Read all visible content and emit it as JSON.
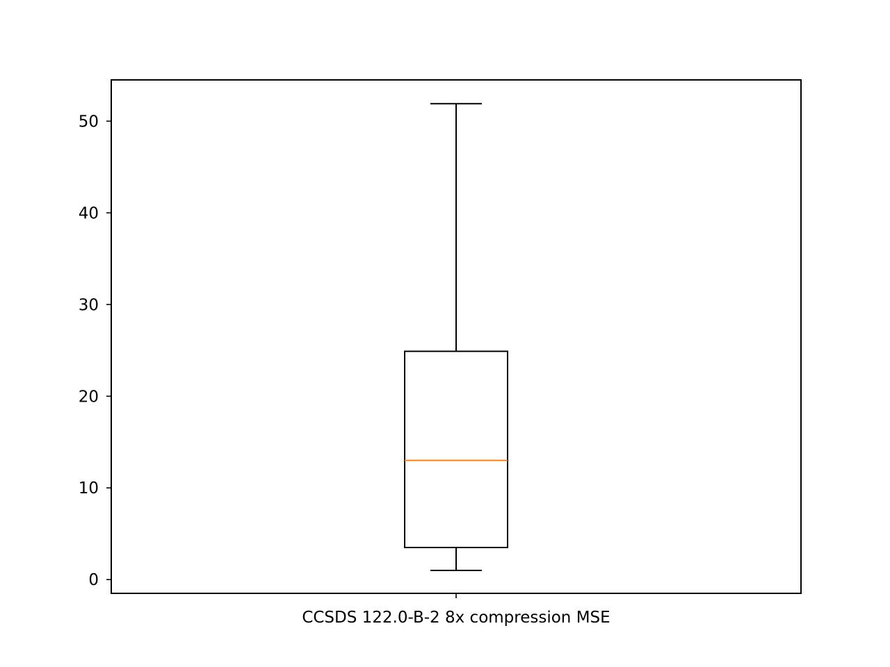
{
  "chart_data": {
    "type": "boxplot",
    "title": "",
    "xlabel": "",
    "ylabel": "",
    "categories": [
      "CCSDS 122.0-B-2 8x compression MSE"
    ],
    "boxes": [
      {
        "whisker_low": 1.0,
        "q1": 3.5,
        "median": 13.0,
        "q3": 24.9,
        "whisker_high": 51.9
      }
    ],
    "ylim": [
      -1.5,
      54.5
    ],
    "yticks": [
      0,
      10,
      20,
      30,
      40,
      50
    ],
    "grid": false,
    "legend": "none",
    "colors": {
      "box": "#000000",
      "median": "#ff7f0e",
      "axes": "#000000",
      "background": "#ffffff"
    }
  }
}
